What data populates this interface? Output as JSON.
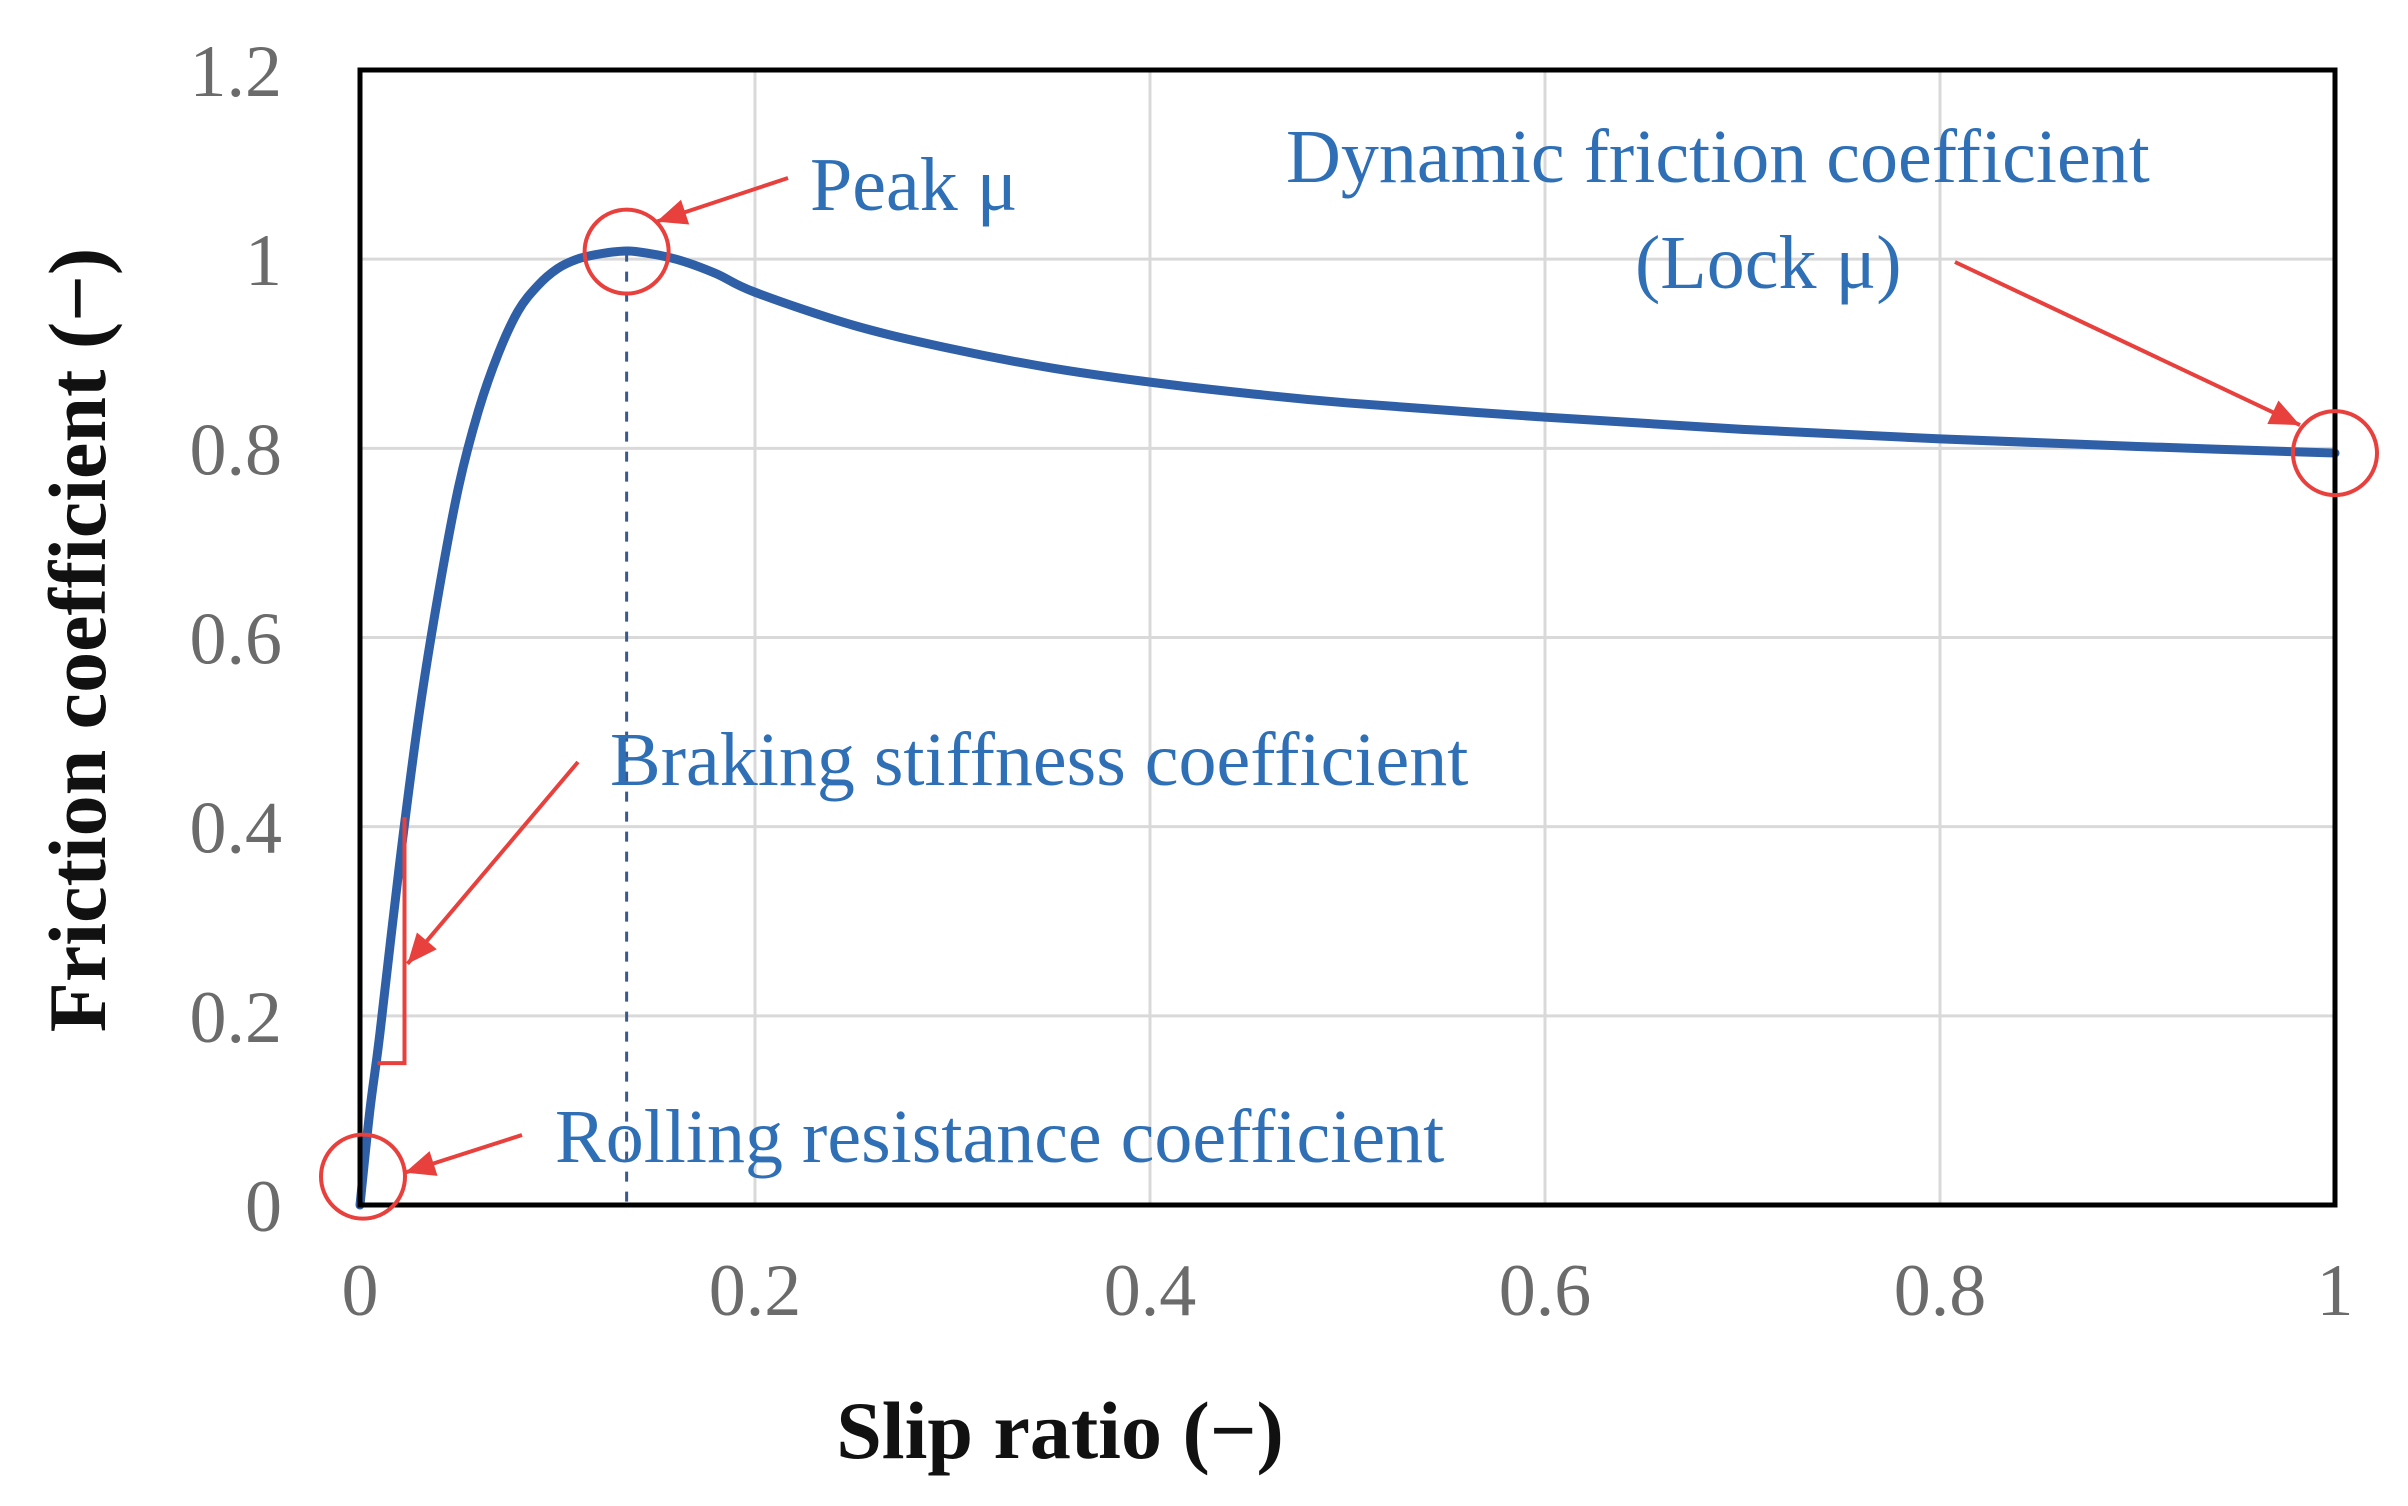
{
  "chart_data": {
    "type": "line",
    "title": "",
    "xlabel": "Slip ratio (−)",
    "ylabel": "Friction coefficient (−)",
    "xlim": [
      0,
      1
    ],
    "ylim": [
      0,
      1.2
    ],
    "grid": true,
    "x_ticks": [
      {
        "value": 0,
        "label": "0"
      },
      {
        "value": 0.2,
        "label": "0.2"
      },
      {
        "value": 0.4,
        "label": "0.4"
      },
      {
        "value": 0.6,
        "label": "0.6"
      },
      {
        "value": 0.8,
        "label": "0.8"
      },
      {
        "value": 1,
        "label": "1"
      }
    ],
    "y_ticks": [
      {
        "value": 0,
        "label": "0"
      },
      {
        "value": 0.2,
        "label": "0.2"
      },
      {
        "value": 0.4,
        "label": "0.4"
      },
      {
        "value": 0.6,
        "label": "0.6"
      },
      {
        "value": 0.8,
        "label": "0.8"
      },
      {
        "value": 1,
        "label": "1"
      },
      {
        "value": 1.2,
        "label": "1.2"
      }
    ],
    "series": [
      {
        "name": "Friction coefficient",
        "color": "#2f5fa6",
        "x": [
          0,
          0.005,
          0.01,
          0.02,
          0.03,
          0.04,
          0.05,
          0.06,
          0.07,
          0.08,
          0.09,
          0.1,
          0.11,
          0.12,
          0.13,
          0.14,
          0.16,
          0.18,
          0.2,
          0.25,
          0.3,
          0.35,
          0.4,
          0.45,
          0.5,
          0.6,
          0.7,
          0.8,
          0.9,
          1.0
        ],
        "y": [
          0,
          0.1,
          0.18,
          0.36,
          0.52,
          0.65,
          0.76,
          0.84,
          0.9,
          0.945,
          0.972,
          0.99,
          1.0,
          1.005,
          1.008,
          1.008,
          1.0,
          0.985,
          0.965,
          0.93,
          0.905,
          0.885,
          0.87,
          0.858,
          0.848,
          0.833,
          0.82,
          0.81,
          0.802,
          0.795
        ]
      }
    ],
    "peak_x": 0.135,
    "annotations": [
      {
        "text": "Peak μ",
        "target_x": 0.135,
        "target_y": 1.008
      },
      {
        "text": "Dynamic friction coefficient",
        "target_x": 1.0,
        "target_y": 0.795
      },
      {
        "text": "(Lock μ)",
        "target_x": 1.0,
        "target_y": 0.795
      },
      {
        "text": "Braking stiffness coefficient",
        "target_x": 0.02,
        "target_y": 0.3
      },
      {
        "text": "Rolling resistance coefficient",
        "target_x": 0.0,
        "target_y": 0.03
      }
    ],
    "colors": {
      "curve": "#2f5fa6",
      "annotation_text": "#2e6fb5",
      "marker": "#e8403c",
      "grid": "#d9d9d9",
      "frame": "#000000",
      "guide": "#3a5a8c"
    }
  }
}
